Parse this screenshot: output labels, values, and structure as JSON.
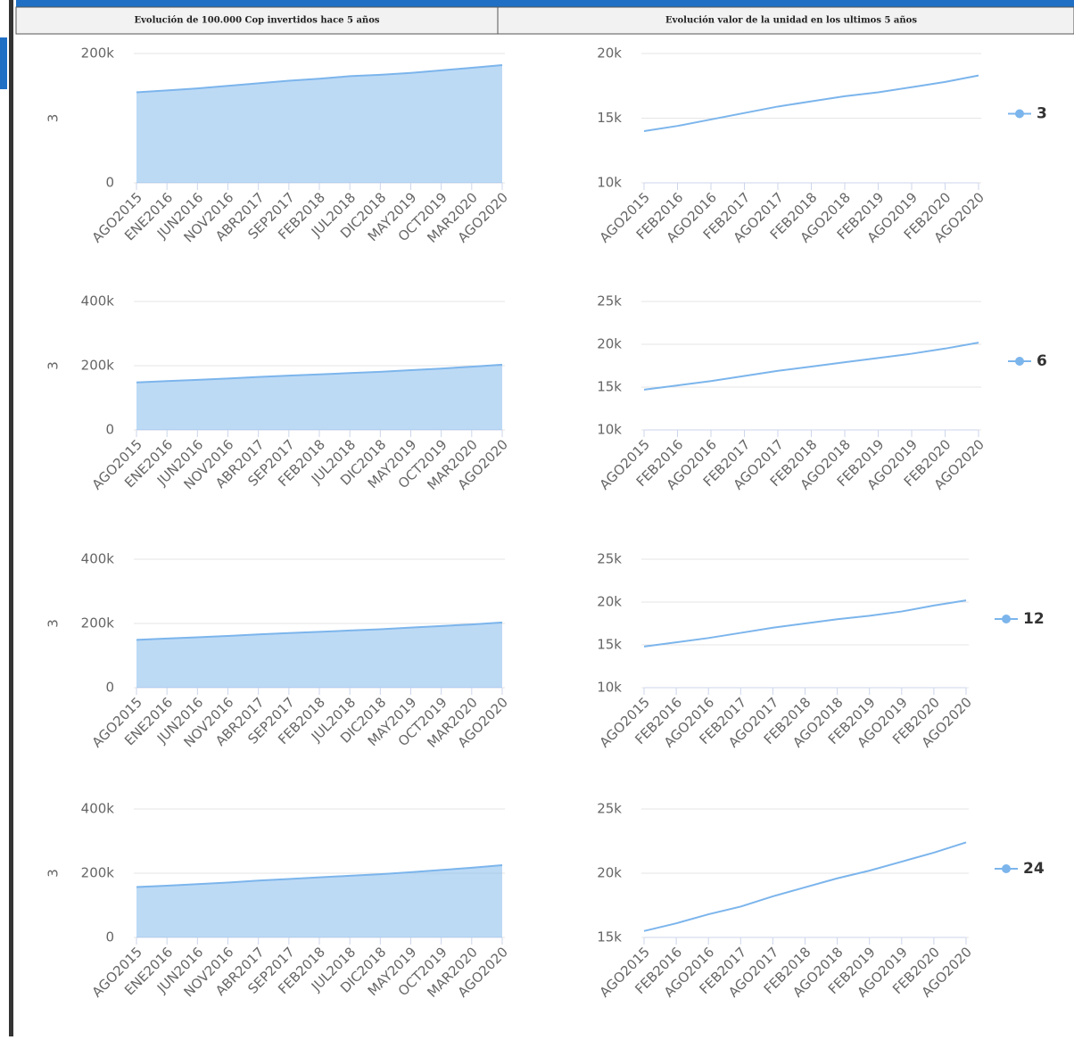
{
  "header": {
    "left_title": "Evolución de 100.000 Cop invertidos hace 5 años",
    "right_title": "Evolución valor de la unidad en los ultimos 5 años"
  },
  "chart_data": [
    {
      "type": "area",
      "ylabel": "3",
      "categories": [
        "AGO2015",
        "ENE2016",
        "JUN2016",
        "NOV2016",
        "ABR2017",
        "SEP2017",
        "FEB2018",
        "JUL2018",
        "DIC2018",
        "MAY2019",
        "OCT2019",
        "MAR2020",
        "AGO2020"
      ],
      "series": [
        {
          "color": "#7cb5ec",
          "values": [
            140000,
            143000,
            146000,
            150000,
            154000,
            158000,
            161000,
            165000,
            167000,
            170000,
            174000,
            178000,
            182000
          ]
        }
      ],
      "ylim": [
        0,
        200000
      ],
      "yticks": [
        0,
        {
          "value": 200000,
          "label": "200k"
        }
      ],
      "grid": true
    },
    {
      "type": "line",
      "categories": [
        "AGO2015",
        "FEB2016",
        "AGO2016",
        "FEB2017",
        "AGO2017",
        "FEB2018",
        "AGO2018",
        "FEB2019",
        "AGO2019",
        "FEB2020",
        "AGO2020"
      ],
      "series": [
        {
          "name": "3",
          "color": "#7cb5ec",
          "values": [
            14000,
            14400,
            14900,
            15400,
            15900,
            16300,
            16700,
            17000,
            17400,
            17800,
            18300
          ]
        }
      ],
      "ylim": [
        10000,
        20000
      ],
      "yticks": [
        {
          "value": 10000,
          "label": "10k"
        },
        {
          "value": 15000,
          "label": "15k"
        },
        {
          "value": 20000,
          "label": "20k"
        }
      ],
      "grid": true,
      "legend": "right"
    },
    {
      "type": "area",
      "ylabel": "3",
      "categories": [
        "AGO2015",
        "ENE2016",
        "JUN2016",
        "NOV2016",
        "ABR2017",
        "SEP2017",
        "FEB2018",
        "JUL2018",
        "DIC2018",
        "MAY2019",
        "OCT2019",
        "MAR2020",
        "AGO2020"
      ],
      "series": [
        {
          "color": "#7cb5ec",
          "values": [
            148000,
            152000,
            156000,
            160000,
            165000,
            169000,
            173000,
            177000,
            181000,
            186000,
            191000,
            197000,
            203000
          ]
        }
      ],
      "ylim": [
        0,
        400000
      ],
      "yticks": [
        0,
        {
          "value": 200000,
          "label": "200k"
        },
        {
          "value": 400000,
          "label": "400k"
        }
      ],
      "grid": true
    },
    {
      "type": "line",
      "categories": [
        "AGO2015",
        "FEB2016",
        "AGO2016",
        "FEB2017",
        "AGO2017",
        "FEB2018",
        "AGO2018",
        "FEB2019",
        "AGO2019",
        "FEB2020",
        "AGO2020"
      ],
      "series": [
        {
          "name": "6",
          "color": "#7cb5ec",
          "values": [
            14700,
            15200,
            15700,
            16300,
            16900,
            17400,
            17900,
            18400,
            18900,
            19500,
            20200
          ]
        }
      ],
      "ylim": [
        10000,
        25000
      ],
      "yticks": [
        {
          "value": 10000,
          "label": "10k"
        },
        {
          "value": 15000,
          "label": "15k"
        },
        {
          "value": 20000,
          "label": "20k"
        },
        {
          "value": 25000,
          "label": "25k"
        }
      ],
      "grid": true,
      "legend": "right"
    },
    {
      "type": "area",
      "ylabel": "3",
      "categories": [
        "AGO2015",
        "ENE2016",
        "JUN2016",
        "NOV2016",
        "ABR2017",
        "SEP2017",
        "FEB2018",
        "JUL2018",
        "DIC2018",
        "MAY2019",
        "OCT2019",
        "MAR2020",
        "AGO2020"
      ],
      "series": [
        {
          "color": "#7cb5ec",
          "values": [
            149000,
            153000,
            157000,
            161000,
            166000,
            170000,
            174000,
            178000,
            182000,
            187000,
            192000,
            197000,
            203000
          ]
        }
      ],
      "ylim": [
        0,
        400000
      ],
      "yticks": [
        0,
        {
          "value": 200000,
          "label": "200k"
        },
        {
          "value": 400000,
          "label": "400k"
        }
      ],
      "grid": true
    },
    {
      "type": "line",
      "categories": [
        "AGO2015",
        "FEB2016",
        "AGO2016",
        "FEB2017",
        "AGO2017",
        "FEB2018",
        "AGO2018",
        "FEB2019",
        "AGO2019",
        "FEB2020",
        "AGO2020"
      ],
      "series": [
        {
          "name": "12",
          "color": "#7cb5ec",
          "values": [
            14800,
            15300,
            15800,
            16400,
            17000,
            17500,
            18000,
            18400,
            18900,
            19600,
            20200
          ]
        }
      ],
      "ylim": [
        10000,
        25000
      ],
      "yticks": [
        {
          "value": 10000,
          "label": "10k"
        },
        {
          "value": 15000,
          "label": "15k"
        },
        {
          "value": 20000,
          "label": "20k"
        },
        {
          "value": 25000,
          "label": "25k"
        }
      ],
      "grid": true,
      "legend": "right"
    },
    {
      "type": "area",
      "ylabel": "3",
      "categories": [
        "AGO2015",
        "ENE2016",
        "JUN2016",
        "NOV2016",
        "ABR2017",
        "SEP2017",
        "FEB2018",
        "JUL2018",
        "DIC2018",
        "MAY2019",
        "OCT2019",
        "MAR2020",
        "AGO2020"
      ],
      "series": [
        {
          "color": "#7cb5ec",
          "values": [
            157000,
            161000,
            166000,
            171000,
            177000,
            182000,
            187000,
            192000,
            197000,
            203000,
            210000,
            217000,
            225000
          ]
        }
      ],
      "ylim": [
        0,
        400000
      ],
      "yticks": [
        0,
        {
          "value": 200000,
          "label": "200k"
        },
        {
          "value": 400000,
          "label": "400k"
        }
      ],
      "grid": true
    },
    {
      "type": "line",
      "categories": [
        "AGO2015",
        "FEB2016",
        "AGO2016",
        "FEB2017",
        "AGO2017",
        "FEB2018",
        "AGO2018",
        "FEB2019",
        "AGO2019",
        "FEB2020",
        "AGO2020"
      ],
      "series": [
        {
          "name": "24",
          "color": "#7cb5ec",
          "values": [
            15500,
            16100,
            16800,
            17400,
            18200,
            18900,
            19600,
            20200,
            20900,
            21600,
            22400
          ]
        }
      ],
      "ylim": [
        15000,
        25000
      ],
      "yticks": [
        {
          "value": 15000,
          "label": "15k"
        },
        {
          "value": 20000,
          "label": "20k"
        },
        {
          "value": 25000,
          "label": "25k"
        }
      ],
      "grid": true,
      "legend": "right"
    }
  ]
}
